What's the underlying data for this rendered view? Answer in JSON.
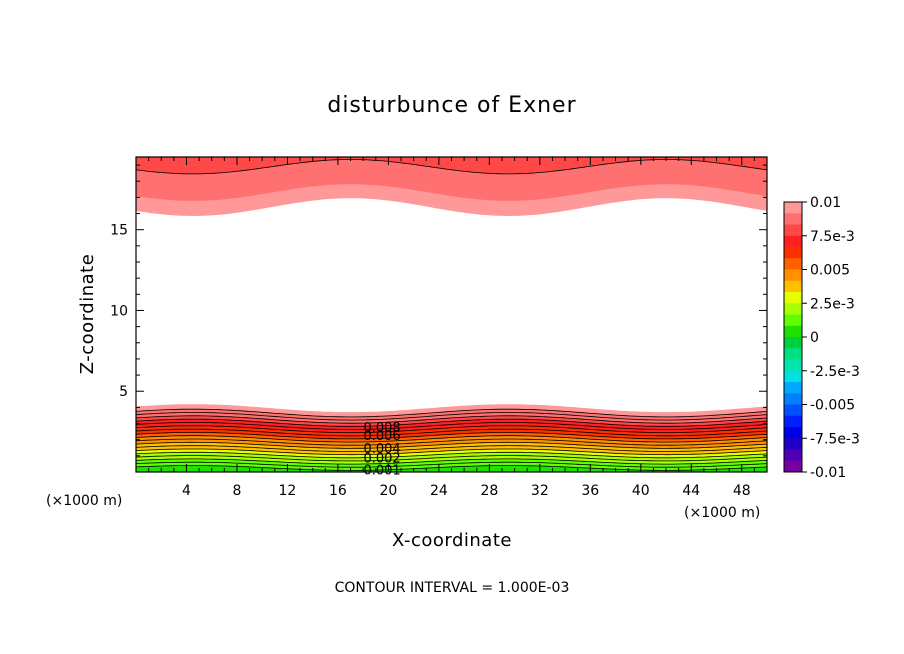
{
  "chart_data": {
    "type": "heatmap",
    "subtype": "filled-contour",
    "title": "disturbunce of Exner",
    "xlabel": "X-coordinate",
    "ylabel": "Z-coordinate",
    "x_unit_left": "(×1000 m)",
    "x_unit_right": "(×1000 m)",
    "footer": "CONTOUR INTERVAL = 1.000E-03",
    "xlim": [
      0,
      50
    ],
    "ylim": [
      0,
      19.5
    ],
    "x_ticks": [
      4,
      8,
      12,
      16,
      20,
      24,
      28,
      32,
      36,
      40,
      44,
      48
    ],
    "x_tick_labels": [
      "4",
      "8",
      "12",
      "16",
      "20",
      "24",
      "28",
      "32",
      "36",
      "40",
      "44",
      "48"
    ],
    "y_ticks": [
      5,
      10,
      15
    ],
    "y_tick_labels": [
      "5",
      "10",
      "15"
    ],
    "contour_interval": 0.001,
    "contour_labels": [
      {
        "text": "0.008",
        "x": 19.5,
        "z": 2.8
      },
      {
        "text": "0.006",
        "x": 19.5,
        "z": 2.3
      },
      {
        "text": "0.004",
        "x": 19.5,
        "z": 1.5
      },
      {
        "text": "0.002",
        "x": 19.5,
        "z": 0.9
      },
      {
        "text": "0.001",
        "x": 19.5,
        "z": 0.15
      }
    ],
    "lower_region": {
      "levels": [
        0.0005,
        0.001,
        0.0015,
        0.002,
        0.0025,
        0.003,
        0.0035,
        0.004,
        0.0045,
        0.005,
        0.0055,
        0.006,
        0.0065,
        0.007,
        0.0075,
        0.008,
        0.0085,
        0.009,
        0.0095
      ],
      "base_heights": [
        0.25,
        0.45,
        0.65,
        0.85,
        1.05,
        1.25,
        1.45,
        1.65,
        1.85,
        2.05,
        2.25,
        2.45,
        2.65,
        2.85,
        3.05,
        3.25,
        3.45,
        3.65,
        3.95
      ],
      "wave_amplitude": 0.25,
      "wave_period": 25,
      "wave_crest_x": 4.5
    },
    "upper_region": {
      "levels": [
        0.0095,
        0.009,
        0.0085,
        0.008
      ],
      "base_heights": [
        16.4,
        17.3,
        18.1,
        18.9
      ],
      "wave_amplitude": 0.55,
      "wave_period": 25,
      "wave_trough_x": 4.5
    },
    "colorbar": {
      "min": -0.01,
      "max": 0.01,
      "labels": [
        "0.01",
        "7.5e-3",
        "0.005",
        "2.5e-3",
        "0",
        "-2.5e-3",
        "-0.005",
        "-7.5e-3",
        "-0.01"
      ],
      "label_values": [
        0.01,
        0.0075,
        0.005,
        0.0025,
        0,
        -0.0025,
        -0.005,
        -0.0075,
        -0.01
      ],
      "colors_top_to_bottom": [
        "#ff9898",
        "#ff7070",
        "#ff4848",
        "#ff2020",
        "#ff3000",
        "#ff6000",
        "#ff9000",
        "#ffc000",
        "#e6ff00",
        "#a8ff00",
        "#60ff00",
        "#20e000",
        "#00d040",
        "#00e080",
        "#00e6b0",
        "#00e0e0",
        "#00a8ff",
        "#0080ff",
        "#0050ff",
        "#0020ff",
        "#0000e6",
        "#2000c8",
        "#5000b4",
        "#7800a0"
      ]
    },
    "grid": false,
    "legend": "colorbar-right"
  }
}
